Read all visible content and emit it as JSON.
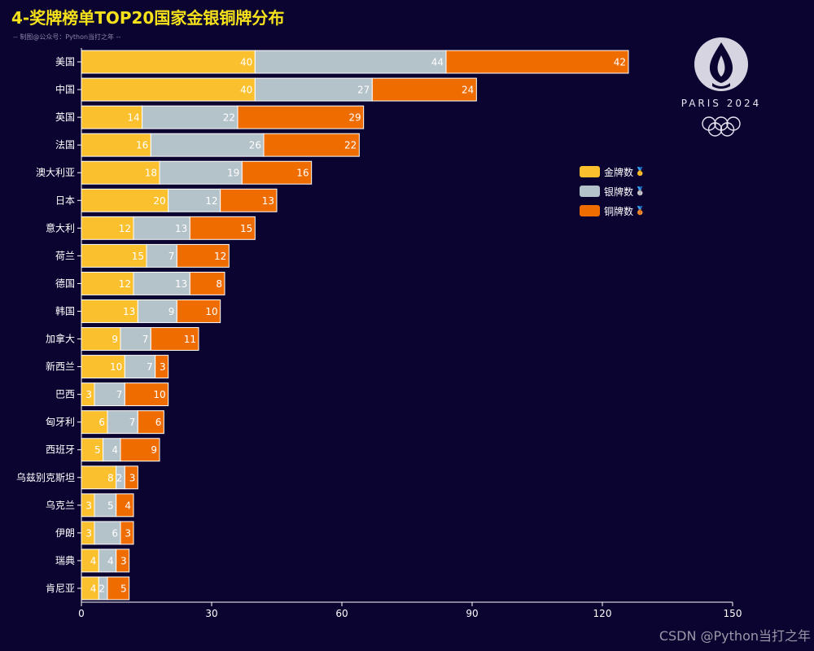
{
  "title": "4-奖牌榜单TOP20国家金银铜牌分布",
  "subtitle": "-- 制图@公众号：Python当打之年 --",
  "watermark": "CSDN @Python当打之年",
  "logo": {
    "text": "PARIS 2024"
  },
  "colors": {
    "gold": "#fbc02d",
    "silver": "#b4c2c9",
    "bronze": "#ef6c00",
    "background": "#0b0431",
    "title": "#f5e21b"
  },
  "legend": {
    "position": "right",
    "items": [
      {
        "label": "金牌数",
        "color": "#fbc02d",
        "icon": "gold-medal-icon",
        "glyph": "🥇"
      },
      {
        "label": "银牌数",
        "color": "#b4c2c9",
        "icon": "silver-medal-icon",
        "glyph": "🥈"
      },
      {
        "label": "铜牌数",
        "color": "#ef6c00",
        "icon": "bronze-medal-icon",
        "glyph": "🥉"
      }
    ]
  },
  "chart_data": {
    "type": "bar",
    "orientation": "horizontal",
    "stacked": true,
    "categories": [
      "美国",
      "中国",
      "英国",
      "法国",
      "澳大利亚",
      "日本",
      "意大利",
      "荷兰",
      "德国",
      "韩国",
      "加拿大",
      "新西兰",
      "巴西",
      "匈牙利",
      "西班牙",
      "乌兹别克斯坦",
      "乌克兰",
      "伊朗",
      "瑞典",
      "肯尼亚"
    ],
    "series": [
      {
        "name": "金牌数",
        "color": "#fbc02d",
        "values": [
          40,
          40,
          14,
          16,
          18,
          20,
          12,
          15,
          12,
          13,
          9,
          10,
          3,
          6,
          5,
          8,
          3,
          3,
          4,
          4
        ]
      },
      {
        "name": "银牌数",
        "color": "#b4c2c9",
        "values": [
          44,
          27,
          22,
          26,
          19,
          12,
          13,
          7,
          13,
          9,
          7,
          7,
          7,
          7,
          4,
          2,
          5,
          6,
          4,
          2
        ]
      },
      {
        "name": "铜牌数",
        "color": "#ef6c00",
        "values": [
          42,
          24,
          29,
          22,
          16,
          13,
          15,
          12,
          8,
          10,
          11,
          3,
          10,
          6,
          9,
          3,
          4,
          3,
          3,
          5
        ]
      }
    ],
    "xlim": [
      0,
      150
    ],
    "xticks": [
      0,
      30,
      60,
      90,
      120,
      150
    ],
    "grid": false,
    "data_labels": true
  }
}
